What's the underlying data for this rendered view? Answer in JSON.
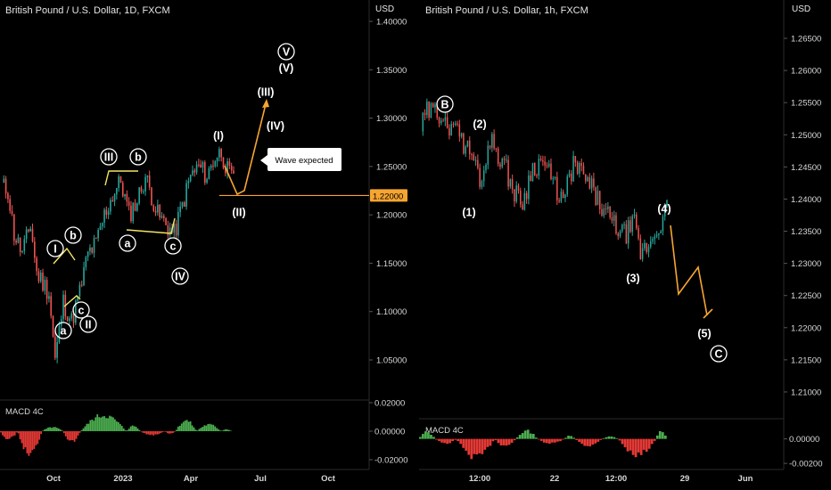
{
  "chart_data": [
    {
      "type": "candlestick",
      "title": "British Pound / U.S. Dollar, 1D, FXCM",
      "currency": "USD",
      "price_axis": {
        "ticks": [
          "1.40000",
          "1.35000",
          "1.30000",
          "1.25000",
          "1.20000",
          "1.15000",
          "1.10000",
          "1.05000"
        ],
        "range": [
          1.03,
          1.42
        ],
        "current_price_label": "1.22000",
        "current_price": 1.22
      },
      "macd_axis": {
        "ticks": [
          "0.02000",
          "0.00000",
          "-0.02000"
        ],
        "range": [
          -0.025,
          0.025
        ]
      },
      "x_ticks": [
        "Oct",
        "2023",
        "Apr",
        "Jul",
        "Oct"
      ],
      "indicator_label": "MACD 4C",
      "annotations": [
        {
          "label": "I",
          "circled": true
        },
        {
          "label": "II",
          "circled": true
        },
        {
          "label": "III",
          "circled": true
        },
        {
          "label": "IV",
          "circled": true
        },
        {
          "label": "V",
          "circled": true
        },
        {
          "label": "a",
          "circled": true
        },
        {
          "label": "b",
          "circled": true
        },
        {
          "label": "c",
          "circled": true
        },
        {
          "label": "a",
          "circled": true
        },
        {
          "label": "b",
          "circled": true
        },
        {
          "label": "c",
          "circled": true
        },
        {
          "label": "(I)"
        },
        {
          "label": "(II)"
        },
        {
          "label": "(III)"
        },
        {
          "label": "(IV)"
        },
        {
          "label": "(V)"
        }
      ],
      "callout": "Wave expected",
      "projection_path": [
        1.26,
        1.22,
        1.32
      ],
      "colors": {
        "up": "#26a69a",
        "down": "#ef5350",
        "projection": "#f7a531",
        "wave": "#f5e663",
        "hist_pos": "#4caf50",
        "hist_neg": "#e53935"
      }
    },
    {
      "type": "candlestick",
      "title": "British Pound / U.S. Dollar, 1h, FXCM",
      "currency": "USD",
      "price_axis": {
        "ticks": [
          "1.26500",
          "1.26000",
          "1.25500",
          "1.25000",
          "1.24500",
          "1.24000",
          "1.23500",
          "1.23000",
          "1.22500",
          "1.22000",
          "1.21500",
          "1.21000"
        ],
        "range": [
          1.206,
          1.27
        ]
      },
      "macd_axis": {
        "ticks": [
          "0.00000",
          "-0.00200"
        ],
        "range": [
          -0.0025,
          0.0018
        ]
      },
      "x_ticks": [
        "12:00",
        "22",
        "12:00",
        "29",
        "Jun"
      ],
      "indicator_label": "MACD 4C",
      "annotations": [
        {
          "label": "B",
          "circled": true
        },
        {
          "label": "(1)"
        },
        {
          "label": "(2)"
        },
        {
          "label": "(3)"
        },
        {
          "label": "(4)"
        },
        {
          "label": "(5)"
        },
        {
          "label": "C",
          "circled": true
        }
      ],
      "projection_path": [
        1.239,
        1.2275,
        1.2315,
        1.2235,
        1.2255
      ],
      "colors": {
        "up": "#26a69a",
        "down": "#ef5350",
        "projection": "#f7a531",
        "hist_pos": "#4caf50",
        "hist_neg": "#e53935"
      }
    }
  ]
}
